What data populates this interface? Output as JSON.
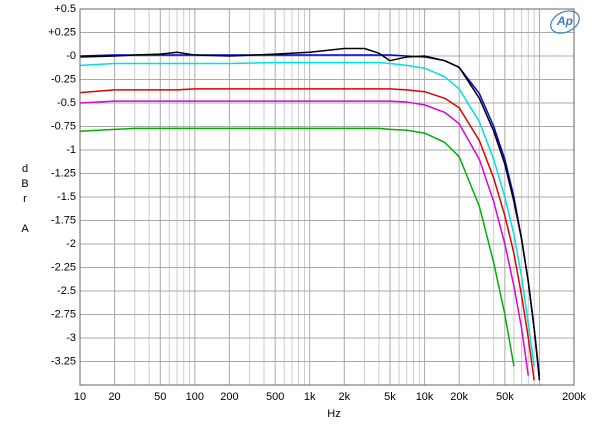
{
  "chart_data": {
    "type": "line",
    "logo": "Ap",
    "xlabel": "Hz",
    "ylabel": "dBr A",
    "xscale": "log",
    "grid": true,
    "minor_grid": true,
    "xlim": [
      10,
      200000
    ],
    "ylim": [
      -3.5,
      0.5
    ],
    "xticks": [
      10,
      20,
      50,
      100,
      200,
      500,
      {
        "value": 1000,
        "label": "1k"
      },
      {
        "value": 2000,
        "label": "2k"
      },
      {
        "value": 5000,
        "label": "5k"
      },
      {
        "value": 10000,
        "label": "10k"
      },
      {
        "value": 20000,
        "label": "20k"
      },
      {
        "value": 50000,
        "label": "50k"
      },
      {
        "value": 200000,
        "label": "200k"
      }
    ],
    "yticks": [
      {
        "value": 0.5,
        "label": "+0.5"
      },
      {
        "value": 0.25,
        "label": "+0.25"
      },
      {
        "value": 0,
        "label": "-0"
      },
      -0.25,
      -0.5,
      -0.75,
      -1,
      -1.25,
      -1.5,
      -1.75,
      -2,
      -2.25,
      -2.5,
      -2.75,
      -3,
      -3.25
    ],
    "x": [
      10,
      20,
      30,
      50,
      70,
      100,
      200,
      500,
      1000,
      2000,
      3000,
      4000,
      5000,
      7000,
      10000,
      15000,
      20000,
      30000,
      40000,
      50000,
      60000,
      70000,
      80000,
      90000,
      100000
    ],
    "series": [
      {
        "color": "#00b000",
        "values": [
          -0.8,
          -0.78,
          -0.77,
          -0.77,
          -0.77,
          -0.77,
          -0.77,
          -0.77,
          -0.77,
          -0.77,
          -0.77,
          -0.77,
          -0.78,
          -0.79,
          -0.82,
          -0.92,
          -1.07,
          -1.6,
          -2.2,
          -2.75,
          -3.3,
          null,
          null,
          null,
          null
        ]
      },
      {
        "color": "#e000e0",
        "values": [
          -0.5,
          -0.48,
          -0.48,
          -0.48,
          -0.48,
          -0.48,
          -0.48,
          -0.48,
          -0.48,
          -0.48,
          -0.48,
          -0.48,
          -0.48,
          -0.49,
          -0.52,
          -0.6,
          -0.72,
          -1.1,
          -1.55,
          -2.0,
          -2.45,
          -2.9,
          -3.4,
          null,
          null
        ]
      },
      {
        "color": "#e00000",
        "values": [
          -0.39,
          -0.36,
          -0.36,
          -0.36,
          -0.36,
          -0.35,
          -0.35,
          -0.35,
          -0.35,
          -0.35,
          -0.35,
          -0.35,
          -0.35,
          -0.36,
          -0.38,
          -0.45,
          -0.55,
          -0.9,
          -1.3,
          -1.7,
          -2.1,
          -2.55,
          -3.0,
          -3.45,
          null
        ]
      },
      {
        "color": "#00e0e0",
        "values": [
          -0.1,
          -0.08,
          -0.08,
          -0.08,
          -0.08,
          -0.08,
          -0.08,
          -0.07,
          -0.07,
          -0.07,
          -0.07,
          -0.07,
          -0.08,
          -0.1,
          -0.13,
          -0.22,
          -0.35,
          -0.7,
          -1.1,
          -1.5,
          -1.9,
          -2.35,
          -2.85,
          -3.3,
          null
        ]
      },
      {
        "color": "#0000e0",
        "values": [
          0,
          0.01,
          0.01,
          0.01,
          0.01,
          0.01,
          0.01,
          0.01,
          0.01,
          0.01,
          0.01,
          0.01,
          0.01,
          0,
          -0.01,
          -0.05,
          -0.12,
          -0.4,
          -0.75,
          -1.1,
          -1.5,
          -1.95,
          -2.4,
          -2.9,
          -3.4
        ]
      },
      {
        "color": "#000000",
        "values": [
          -0.01,
          0,
          0.01,
          0.02,
          0.04,
          0.01,
          0,
          0.02,
          0.04,
          0.08,
          0.08,
          0.03,
          -0.05,
          -0.01,
          0,
          -0.05,
          -0.12,
          -0.45,
          -0.8,
          -1.15,
          -1.55,
          -1.95,
          -2.4,
          -2.9,
          -3.45
        ]
      }
    ]
  }
}
